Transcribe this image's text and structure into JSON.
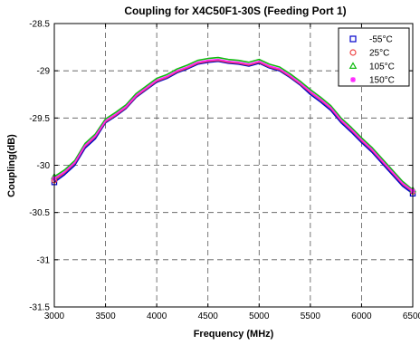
{
  "chart_data": {
    "type": "line",
    "title": "Coupling for X4C50F1-30S (Feeding Port 1)",
    "xlabel": "Frequency (MHz)",
    "ylabel": "Coupling(dB)",
    "xlim": [
      3000,
      6500
    ],
    "ylim": [
      -31.5,
      -28.5
    ],
    "xticks": [
      "3000",
      "3500",
      "4000",
      "4500",
      "5000",
      "5500",
      "6000",
      "6500"
    ],
    "yticks": [
      "-28.5",
      "-29",
      "-29.5",
      "-30",
      "-30.5",
      "-31",
      "-31.5"
    ],
    "grid": true,
    "legend_position": "top-right",
    "x": [
      3000,
      3100,
      3200,
      3300,
      3400,
      3500,
      3600,
      3700,
      3800,
      3900,
      4000,
      4100,
      4200,
      4300,
      4400,
      4500,
      4600,
      4700,
      4800,
      4900,
      5000,
      5100,
      5200,
      5300,
      5400,
      5500,
      5600,
      5700,
      5800,
      5900,
      6000,
      6100,
      6200,
      6300,
      6400,
      6500
    ],
    "series": [
      {
        "name": "-55°C",
        "color": "#0000cc",
        "marker": "square",
        "values": [
          -30.18,
          -30.1,
          -30.0,
          -29.82,
          -29.72,
          -29.55,
          -29.48,
          -29.4,
          -29.28,
          -29.2,
          -29.12,
          -29.08,
          -29.02,
          -28.98,
          -28.93,
          -28.91,
          -28.9,
          -28.92,
          -28.93,
          -28.95,
          -28.92,
          -28.97,
          -29.0,
          -29.07,
          -29.15,
          -29.25,
          -29.33,
          -29.42,
          -29.55,
          -29.65,
          -29.76,
          -29.86,
          -29.98,
          -30.1,
          -30.22,
          -30.3
        ]
      },
      {
        "name": "25°C",
        "color": "#ee4444",
        "marker": "circle",
        "values": [
          -30.16,
          -30.08,
          -29.98,
          -29.8,
          -29.7,
          -29.54,
          -29.47,
          -29.39,
          -29.27,
          -29.19,
          -29.11,
          -29.07,
          -29.01,
          -28.97,
          -28.92,
          -28.9,
          -28.89,
          -28.91,
          -28.92,
          -28.94,
          -28.91,
          -28.96,
          -28.99,
          -29.06,
          -29.14,
          -29.23,
          -29.31,
          -29.4,
          -29.53,
          -29.63,
          -29.74,
          -29.84,
          -29.96,
          -30.08,
          -30.2,
          -30.28
        ]
      },
      {
        "name": "105°C",
        "color": "#11bb11",
        "marker": "triangle",
        "values": [
          -30.12,
          -30.05,
          -29.95,
          -29.77,
          -29.67,
          -29.51,
          -29.44,
          -29.36,
          -29.24,
          -29.16,
          -29.08,
          -29.04,
          -28.98,
          -28.94,
          -28.89,
          -28.87,
          -28.86,
          -28.88,
          -28.89,
          -28.91,
          -28.88,
          -28.93,
          -28.96,
          -29.03,
          -29.11,
          -29.2,
          -29.28,
          -29.37,
          -29.5,
          -29.6,
          -29.71,
          -29.81,
          -29.93,
          -30.05,
          -30.17,
          -30.26
        ]
      },
      {
        "name": "150°C",
        "color": "#ff22ff",
        "marker": "star",
        "values": [
          -30.14,
          -30.07,
          -29.97,
          -29.79,
          -29.69,
          -29.53,
          -29.46,
          -29.38,
          -29.26,
          -29.18,
          -29.1,
          -29.06,
          -29.0,
          -28.96,
          -28.91,
          -28.89,
          -28.88,
          -28.9,
          -28.91,
          -28.93,
          -28.9,
          -28.95,
          -28.98,
          -29.05,
          -29.13,
          -29.22,
          -29.3,
          -29.39,
          -29.52,
          -29.62,
          -29.73,
          -29.83,
          -29.95,
          -30.07,
          -30.19,
          -30.27
        ]
      }
    ]
  }
}
